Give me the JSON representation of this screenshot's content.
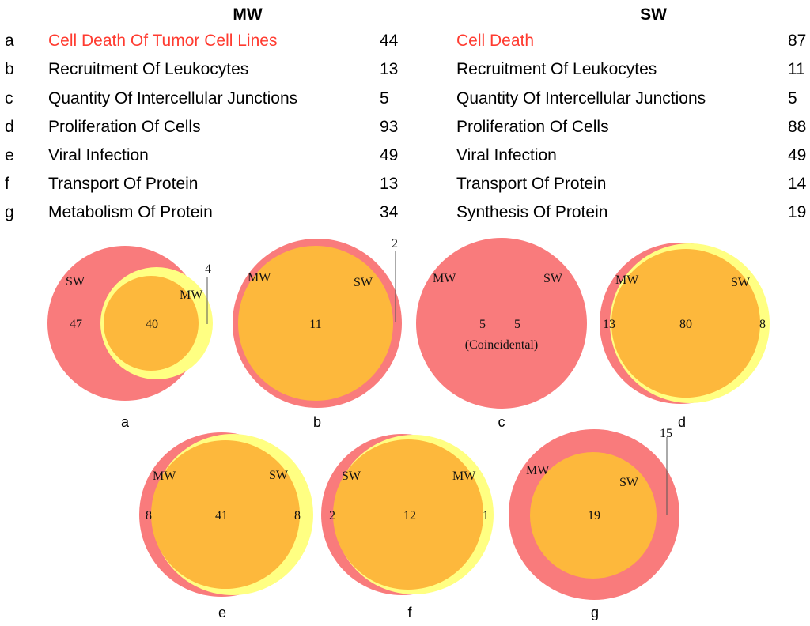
{
  "headers": {
    "left": "MW",
    "right": "SW"
  },
  "colors": {
    "sw_circle": "#f97b7c",
    "mw_circle": "#ffff82",
    "overlap": "#fdb83c",
    "highlight": "#ff3b30"
  },
  "rows": [
    {
      "key": "a",
      "mw_label": "Cell Death Of Tumor Cell Lines",
      "mw_count": "44",
      "sw_label": "Cell Death",
      "sw_count": "87",
      "highlight": true
    },
    {
      "key": "b",
      "mw_label": "Recruitment Of Leukocytes",
      "mw_count": "13",
      "sw_label": "Recruitment Of Leukocytes",
      "sw_count": "11",
      "highlight": false
    },
    {
      "key": "c",
      "mw_label": "Quantity Of Intercellular Junctions",
      "mw_count": "5",
      "sw_label": "Quantity Of Intercellular Junctions",
      "sw_count": "5",
      "highlight": false
    },
    {
      "key": "d",
      "mw_label": "Proliferation Of Cells",
      "mw_count": "93",
      "sw_label": "Proliferation Of Cells",
      "sw_count": "88",
      "highlight": false
    },
    {
      "key": "e",
      "mw_label": "Viral Infection",
      "mw_count": "49",
      "sw_label": "Viral Infection",
      "sw_count": "49",
      "highlight": false
    },
    {
      "key": "f",
      "mw_label": "Transport Of Protein",
      "mw_count": "13",
      "sw_label": "Transport Of Protein",
      "sw_count": "14",
      "highlight": false
    },
    {
      "key": "g",
      "mw_label": "Metabolism Of Protein",
      "mw_count": "34",
      "sw_label": "Synthesis Of Protein",
      "sw_count": "19",
      "highlight": false
    }
  ],
  "venns": [
    {
      "key": "a",
      "set_labels": [
        "SW",
        "MW"
      ],
      "values": [
        "47",
        "40",
        "4"
      ]
    },
    {
      "key": "b",
      "set_labels": [
        "MW",
        "SW"
      ],
      "values": [
        "11",
        "2"
      ]
    },
    {
      "key": "c",
      "set_labels": [
        "MW",
        "SW"
      ],
      "values": [
        "5",
        "5"
      ],
      "note": "(Coincidental)"
    },
    {
      "key": "d",
      "set_labels": [
        "MW",
        "SW"
      ],
      "values": [
        "13",
        "80",
        "8"
      ]
    },
    {
      "key": "e",
      "set_labels": [
        "MW",
        "SW"
      ],
      "values": [
        "8",
        "41",
        "8"
      ]
    },
    {
      "key": "f",
      "set_labels": [
        "SW",
        "MW"
      ],
      "values": [
        "2",
        "12",
        "1"
      ]
    },
    {
      "key": "g",
      "set_labels": [
        "MW",
        "SW"
      ],
      "values": [
        "19",
        "15"
      ]
    }
  ]
}
